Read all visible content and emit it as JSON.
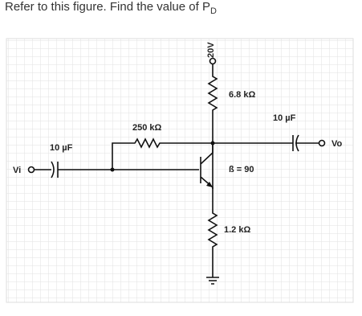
{
  "question": {
    "text": "Refer to this figure. Find the value of P",
    "subscript": "D"
  },
  "circuit": {
    "supply": "20V",
    "collector_resistor": "6.8 kΩ",
    "output_capacitor": "10 µF",
    "output": "Vo",
    "base_resistor": "250 kΩ",
    "input_capacitor": "10 µF",
    "input": "Vi",
    "beta": "ß = 90",
    "emitter_resistor": "1.2 kΩ"
  }
}
